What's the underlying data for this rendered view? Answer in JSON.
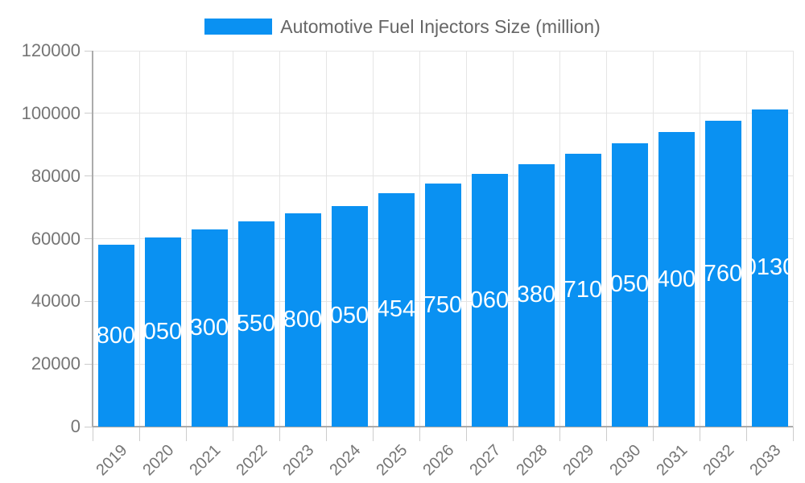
{
  "chart_data": {
    "type": "bar",
    "series_name": "Automotive Fuel Injectors Size (million)",
    "categories": [
      "2019",
      "2020",
      "2021",
      "2022",
      "2023",
      "2024",
      "2025",
      "2026",
      "2027",
      "2028",
      "2029",
      "2030",
      "2031",
      "2032",
      "2033"
    ],
    "values": [
      58000,
      60500,
      63000,
      65500,
      68000,
      70500,
      74545,
      77500,
      80600,
      83800,
      87100,
      90500,
      94000,
      97600,
      101300
    ],
    "yticks": [
      0,
      20000,
      40000,
      60000,
      80000,
      100000,
      120000
    ],
    "ylim": [
      0,
      120000
    ],
    "xlabel": "",
    "ylabel": "",
    "grid": true,
    "legend_position": "top",
    "bar_labels_inside": true,
    "bar_color": "#0a91f2",
    "bar_label_color": "#ffffff",
    "grid_color": "#e5e5e5",
    "axis_line_color": "#ababab",
    "tick_color": "#cccccc",
    "axis_text_color": "#757575",
    "legend_text_color": "#666666"
  }
}
